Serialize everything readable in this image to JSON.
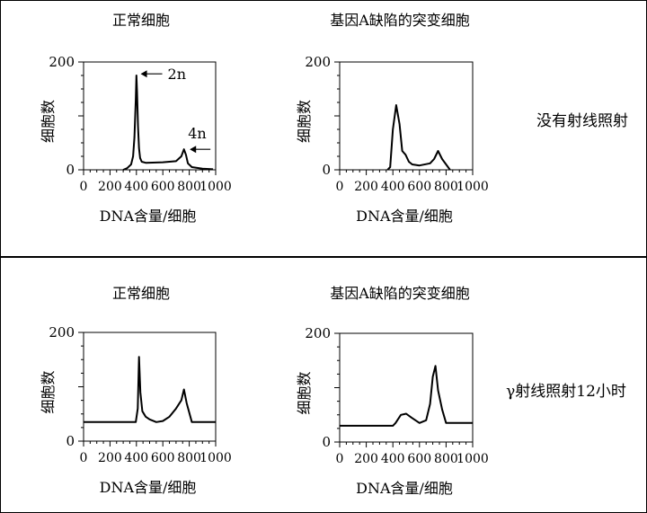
{
  "rows": [
    {
      "condition": "没有射线照射"
    },
    {
      "condition": "γ射线照射12小时"
    }
  ],
  "chart_data": [
    {
      "type": "line",
      "title": "正常细胞",
      "xlabel": "DNA含量/细胞",
      "ylabel": "细胞数",
      "xlim": [
        0,
        1000
      ],
      "ylim": [
        0,
        200
      ],
      "x_ticks": [
        "0",
        "200",
        "400",
        "600",
        "800",
        "1000"
      ],
      "y_ticks": [
        "0",
        "200"
      ],
      "annotations": [
        "2n",
        "4n"
      ],
      "series": [
        {
          "x": [
            300,
            330,
            360,
            375,
            385,
            395,
            400,
            405,
            412,
            420,
            428,
            440,
            470,
            600,
            700,
            740,
            760,
            775,
            790,
            820,
            900,
            980
          ],
          "y": [
            0,
            3,
            10,
            25,
            60,
            130,
            175,
            145,
            80,
            40,
            22,
            15,
            13,
            14,
            16,
            25,
            38,
            28,
            12,
            5,
            2,
            1
          ]
        }
      ]
    },
    {
      "type": "line",
      "title": "基因A缺陷的突变细胞",
      "xlabel": "DNA含量/细胞",
      "ylabel": "细胞数",
      "xlim": [
        0,
        1000
      ],
      "ylim": [
        0,
        200
      ],
      "x_ticks": [
        "0",
        "200",
        "400",
        "600",
        "800",
        "1000"
      ],
      "y_ticks": [
        "0",
        "200"
      ],
      "series": [
        {
          "x": [
            360,
            380,
            400,
            425,
            450,
            470,
            495,
            520,
            545,
            600,
            680,
            710,
            740,
            770,
            830
          ],
          "y": [
            0,
            5,
            75,
            120,
            85,
            35,
            28,
            15,
            10,
            8,
            12,
            20,
            35,
            20,
            0
          ]
        }
      ]
    },
    {
      "type": "line",
      "title": "正常细胞",
      "xlabel": "DNA含量/细胞",
      "ylabel": "细胞数",
      "xlim": [
        0,
        1000
      ],
      "ylim": [
        0,
        200
      ],
      "x_ticks": [
        "0",
        "200",
        "400",
        "600",
        "800",
        "1000"
      ],
      "y_ticks": [
        "0",
        "200"
      ],
      "series": [
        {
          "x": [
            0,
            395,
            410,
            420,
            430,
            445,
            470,
            500,
            550,
            600,
            650,
            700,
            740,
            760,
            780,
            820,
            870,
            1000
          ],
          "y": [
            35,
            35,
            60,
            155,
            90,
            55,
            45,
            40,
            35,
            37,
            45,
            60,
            75,
            95,
            70,
            35,
            35,
            35
          ]
        }
      ]
    },
    {
      "type": "line",
      "title": "基因A缺陷的突变细胞",
      "xlabel": "DNA含量/细胞",
      "ylabel": "细胞数",
      "xlim": [
        0,
        1000
      ],
      "ylim": [
        0,
        200
      ],
      "x_ticks": [
        "0",
        "200",
        "400",
        "600",
        "800",
        "1000"
      ],
      "y_ticks": [
        "0",
        "200"
      ],
      "series": [
        {
          "x": [
            0,
            400,
            420,
            460,
            500,
            540,
            600,
            650,
            680,
            700,
            720,
            740,
            770,
            800,
            1000
          ],
          "y": [
            30,
            30,
            35,
            50,
            52,
            45,
            35,
            40,
            70,
            120,
            140,
            95,
            60,
            35,
            35
          ]
        }
      ]
    }
  ]
}
